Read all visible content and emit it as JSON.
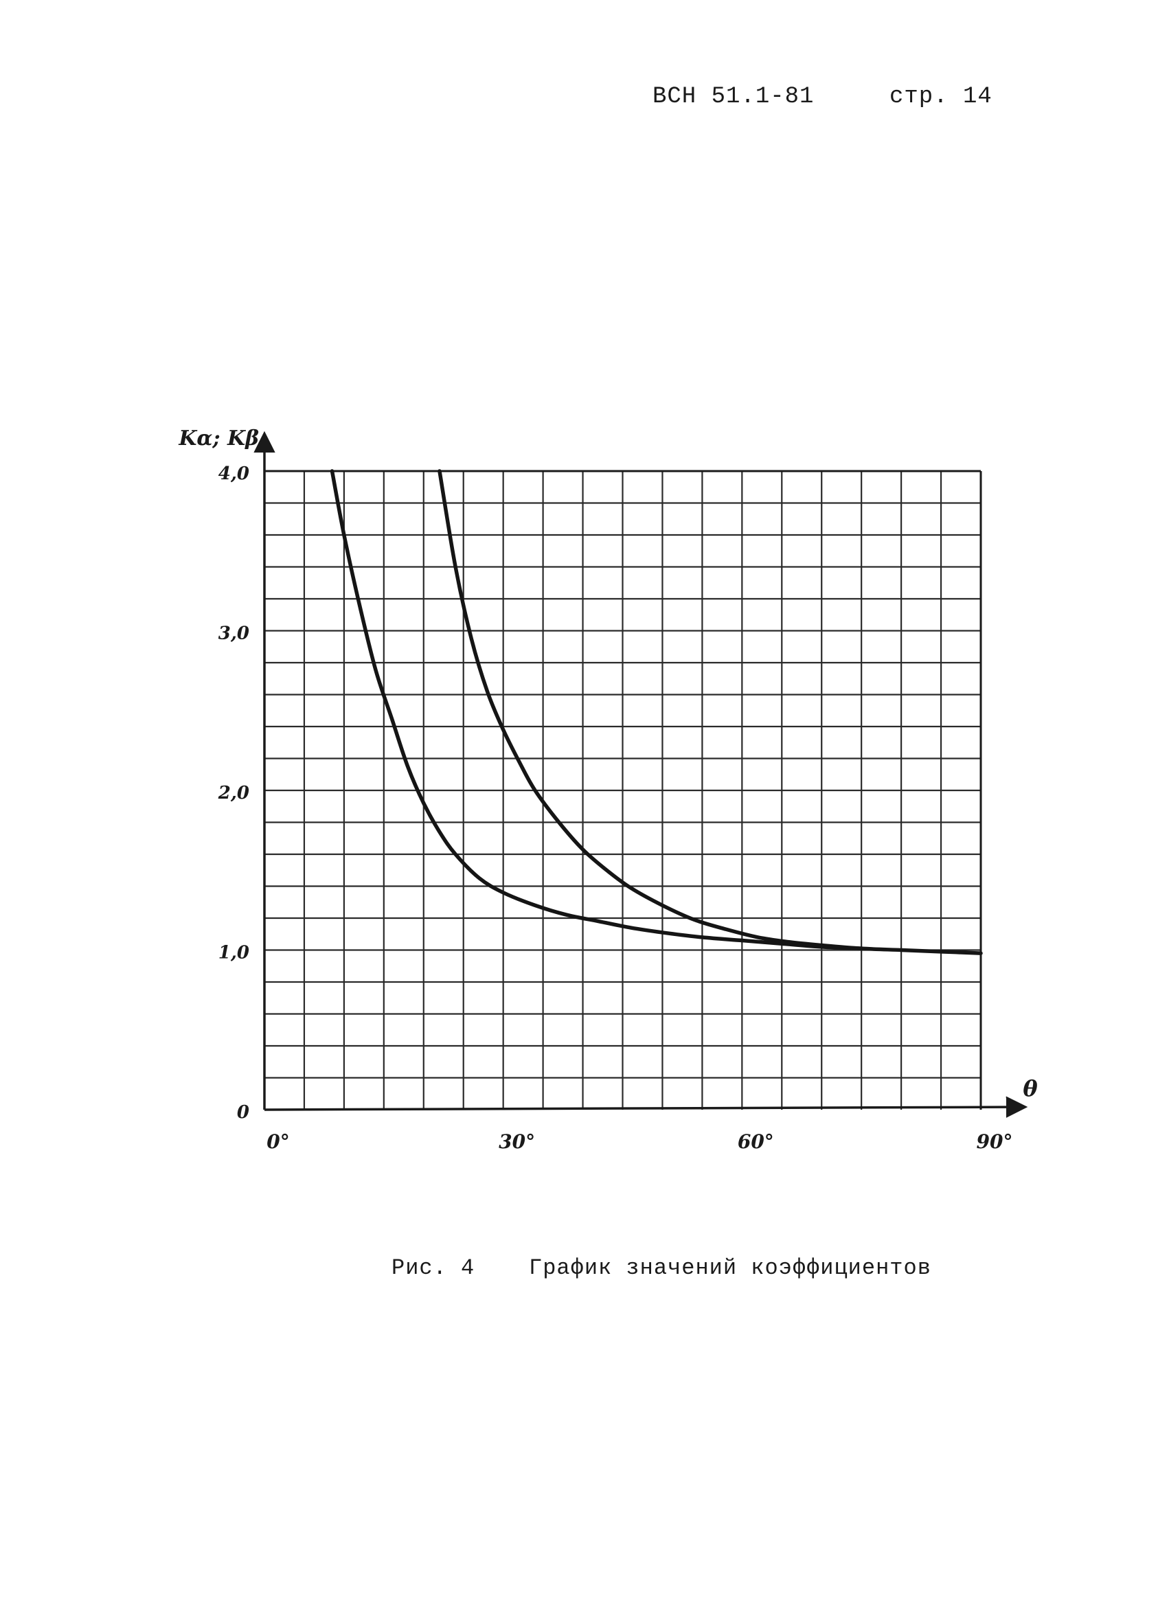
{
  "header": {
    "doc_code": "ВСН 51.1-81",
    "page_number": "стр. 14"
  },
  "caption": {
    "fig_number": "Рис. 4",
    "title": "График значений коэффициентов"
  },
  "chart_data": {
    "type": "line",
    "title": "",
    "xlabel": "θ",
    "ylabel": "Kα; Kβ",
    "xlim": [
      0,
      90
    ],
    "ylim": [
      0,
      4.0
    ],
    "x_ticks": [
      {
        "value": 0,
        "label": "0°"
      },
      {
        "value": 30,
        "label": "30°"
      },
      {
        "value": 60,
        "label": "60°"
      },
      {
        "value": 90,
        "label": "90°"
      }
    ],
    "y_ticks": [
      {
        "value": 0,
        "label": "0"
      },
      {
        "value": 1.0,
        "label": "1,0"
      },
      {
        "value": 2.0,
        "label": "2,0"
      },
      {
        "value": 3.0,
        "label": "3,0"
      },
      {
        "value": 4.0,
        "label": "4,0"
      }
    ],
    "grid": {
      "x_step": 5,
      "y_step": 0.2
    },
    "grid_on": true,
    "series": [
      {
        "x": [
          8.5,
          10,
          12,
          14,
          16,
          18,
          20,
          22,
          24,
          27,
          30,
          34,
          38,
          42,
          46,
          50,
          55,
          60,
          65,
          70,
          75
        ],
        "y": [
          4.0,
          3.6,
          3.15,
          2.75,
          2.45,
          2.15,
          1.92,
          1.74,
          1.6,
          1.45,
          1.36,
          1.28,
          1.22,
          1.18,
          1.14,
          1.11,
          1.08,
          1.06,
          1.04,
          1.02,
          1.01
        ]
      },
      {
        "x": [
          22,
          24,
          26,
          28,
          30,
          32,
          34,
          37,
          40,
          43,
          46,
          50,
          54,
          58,
          62,
          66,
          70,
          75,
          80,
          85,
          90
        ],
        "y": [
          4.0,
          3.4,
          2.95,
          2.62,
          2.38,
          2.18,
          2.0,
          1.8,
          1.63,
          1.5,
          1.39,
          1.28,
          1.19,
          1.13,
          1.08,
          1.05,
          1.03,
          1.01,
          1.0,
          0.99,
          0.98
        ]
      }
    ]
  }
}
